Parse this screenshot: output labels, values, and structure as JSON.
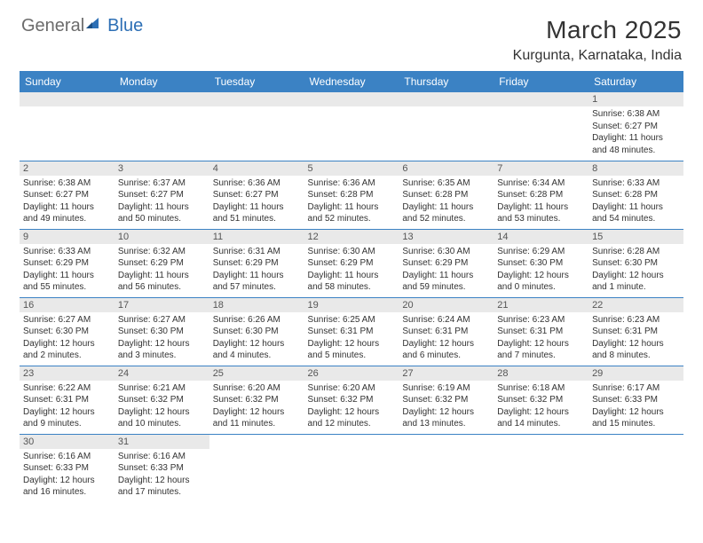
{
  "logo": {
    "part1": "General",
    "part2": "Blue"
  },
  "title": "March 2025",
  "location": "Kurgunta, Karnataka, India",
  "colors": {
    "header_bg": "#3b82c4",
    "header_text": "#ffffff",
    "row_divider": "#3b82c4",
    "daynum_bg": "#e9e9e9",
    "logo_gray": "#6b6b6b",
    "logo_blue": "#2d6fb5",
    "text": "#333333",
    "background": "#ffffff"
  },
  "weekdays": [
    "Sunday",
    "Monday",
    "Tuesday",
    "Wednesday",
    "Thursday",
    "Friday",
    "Saturday"
  ],
  "weeks": [
    [
      null,
      null,
      null,
      null,
      null,
      null,
      {
        "n": "1",
        "sr": "Sunrise: 6:38 AM",
        "ss": "Sunset: 6:27 PM",
        "dl": "Daylight: 11 hours and 48 minutes."
      }
    ],
    [
      {
        "n": "2",
        "sr": "Sunrise: 6:38 AM",
        "ss": "Sunset: 6:27 PM",
        "dl": "Daylight: 11 hours and 49 minutes."
      },
      {
        "n": "3",
        "sr": "Sunrise: 6:37 AM",
        "ss": "Sunset: 6:27 PM",
        "dl": "Daylight: 11 hours and 50 minutes."
      },
      {
        "n": "4",
        "sr": "Sunrise: 6:36 AM",
        "ss": "Sunset: 6:27 PM",
        "dl": "Daylight: 11 hours and 51 minutes."
      },
      {
        "n": "5",
        "sr": "Sunrise: 6:36 AM",
        "ss": "Sunset: 6:28 PM",
        "dl": "Daylight: 11 hours and 52 minutes."
      },
      {
        "n": "6",
        "sr": "Sunrise: 6:35 AM",
        "ss": "Sunset: 6:28 PM",
        "dl": "Daylight: 11 hours and 52 minutes."
      },
      {
        "n": "7",
        "sr": "Sunrise: 6:34 AM",
        "ss": "Sunset: 6:28 PM",
        "dl": "Daylight: 11 hours and 53 minutes."
      },
      {
        "n": "8",
        "sr": "Sunrise: 6:33 AM",
        "ss": "Sunset: 6:28 PM",
        "dl": "Daylight: 11 hours and 54 minutes."
      }
    ],
    [
      {
        "n": "9",
        "sr": "Sunrise: 6:33 AM",
        "ss": "Sunset: 6:29 PM",
        "dl": "Daylight: 11 hours and 55 minutes."
      },
      {
        "n": "10",
        "sr": "Sunrise: 6:32 AM",
        "ss": "Sunset: 6:29 PM",
        "dl": "Daylight: 11 hours and 56 minutes."
      },
      {
        "n": "11",
        "sr": "Sunrise: 6:31 AM",
        "ss": "Sunset: 6:29 PM",
        "dl": "Daylight: 11 hours and 57 minutes."
      },
      {
        "n": "12",
        "sr": "Sunrise: 6:30 AM",
        "ss": "Sunset: 6:29 PM",
        "dl": "Daylight: 11 hours and 58 minutes."
      },
      {
        "n": "13",
        "sr": "Sunrise: 6:30 AM",
        "ss": "Sunset: 6:29 PM",
        "dl": "Daylight: 11 hours and 59 minutes."
      },
      {
        "n": "14",
        "sr": "Sunrise: 6:29 AM",
        "ss": "Sunset: 6:30 PM",
        "dl": "Daylight: 12 hours and 0 minutes."
      },
      {
        "n": "15",
        "sr": "Sunrise: 6:28 AM",
        "ss": "Sunset: 6:30 PM",
        "dl": "Daylight: 12 hours and 1 minute."
      }
    ],
    [
      {
        "n": "16",
        "sr": "Sunrise: 6:27 AM",
        "ss": "Sunset: 6:30 PM",
        "dl": "Daylight: 12 hours and 2 minutes."
      },
      {
        "n": "17",
        "sr": "Sunrise: 6:27 AM",
        "ss": "Sunset: 6:30 PM",
        "dl": "Daylight: 12 hours and 3 minutes."
      },
      {
        "n": "18",
        "sr": "Sunrise: 6:26 AM",
        "ss": "Sunset: 6:30 PM",
        "dl": "Daylight: 12 hours and 4 minutes."
      },
      {
        "n": "19",
        "sr": "Sunrise: 6:25 AM",
        "ss": "Sunset: 6:31 PM",
        "dl": "Daylight: 12 hours and 5 minutes."
      },
      {
        "n": "20",
        "sr": "Sunrise: 6:24 AM",
        "ss": "Sunset: 6:31 PM",
        "dl": "Daylight: 12 hours and 6 minutes."
      },
      {
        "n": "21",
        "sr": "Sunrise: 6:23 AM",
        "ss": "Sunset: 6:31 PM",
        "dl": "Daylight: 12 hours and 7 minutes."
      },
      {
        "n": "22",
        "sr": "Sunrise: 6:23 AM",
        "ss": "Sunset: 6:31 PM",
        "dl": "Daylight: 12 hours and 8 minutes."
      }
    ],
    [
      {
        "n": "23",
        "sr": "Sunrise: 6:22 AM",
        "ss": "Sunset: 6:31 PM",
        "dl": "Daylight: 12 hours and 9 minutes."
      },
      {
        "n": "24",
        "sr": "Sunrise: 6:21 AM",
        "ss": "Sunset: 6:32 PM",
        "dl": "Daylight: 12 hours and 10 minutes."
      },
      {
        "n": "25",
        "sr": "Sunrise: 6:20 AM",
        "ss": "Sunset: 6:32 PM",
        "dl": "Daylight: 12 hours and 11 minutes."
      },
      {
        "n": "26",
        "sr": "Sunrise: 6:20 AM",
        "ss": "Sunset: 6:32 PM",
        "dl": "Daylight: 12 hours and 12 minutes."
      },
      {
        "n": "27",
        "sr": "Sunrise: 6:19 AM",
        "ss": "Sunset: 6:32 PM",
        "dl": "Daylight: 12 hours and 13 minutes."
      },
      {
        "n": "28",
        "sr": "Sunrise: 6:18 AM",
        "ss": "Sunset: 6:32 PM",
        "dl": "Daylight: 12 hours and 14 minutes."
      },
      {
        "n": "29",
        "sr": "Sunrise: 6:17 AM",
        "ss": "Sunset: 6:33 PM",
        "dl": "Daylight: 12 hours and 15 minutes."
      }
    ],
    [
      {
        "n": "30",
        "sr": "Sunrise: 6:16 AM",
        "ss": "Sunset: 6:33 PM",
        "dl": "Daylight: 12 hours and 16 minutes."
      },
      {
        "n": "31",
        "sr": "Sunrise: 6:16 AM",
        "ss": "Sunset: 6:33 PM",
        "dl": "Daylight: 12 hours and 17 minutes."
      },
      null,
      null,
      null,
      null,
      null
    ]
  ]
}
